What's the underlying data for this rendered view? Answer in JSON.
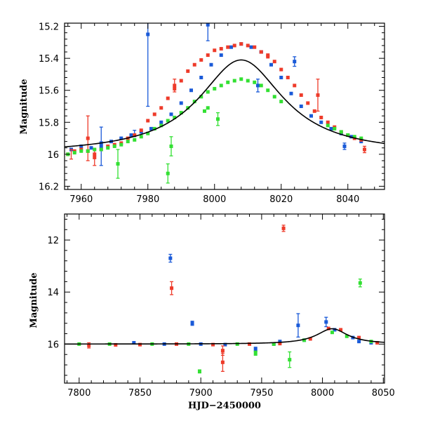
{
  "chart_data": [
    {
      "type": "scatter",
      "xlabel": "",
      "ylabel": "Magnitude",
      "xlim": [
        7955,
        8051
      ],
      "ylim": [
        15.18,
        16.22
      ],
      "y_inverted": true,
      "xticks": [
        7960,
        7980,
        8000,
        8020,
        8040
      ],
      "yticks": [
        15.2,
        15.4,
        15.6,
        15.8,
        16,
        16.2
      ],
      "yticklabels": [
        "15.2",
        "15.4",
        "15.6",
        "15.8",
        "16",
        "16.2"
      ],
      "grid": false,
      "model": {
        "color": "#000000",
        "peak_x": 8008,
        "peak_y": 15.41,
        "base": 16.0,
        "depth": 0.59,
        "width": 15.5
      },
      "series": [
        {
          "color": "#1a5ad8",
          "points": [
            [
              7957,
              15.97
            ],
            [
              7960,
              15.95
            ],
            [
              7963,
              15.96
            ],
            [
              7966,
              15.93
            ],
            [
              7969,
              15.92
            ],
            [
              7972,
              15.9
            ],
            [
              7975,
              15.88
            ],
            [
              7978,
              15.86
            ],
            [
              7981,
              15.84
            ],
            [
              7984,
              15.8
            ],
            [
              7987,
              15.75
            ],
            [
              7990,
              15.68
            ],
            [
              7993,
              15.6
            ],
            [
              7996,
              15.52
            ],
            [
              7999,
              15.44
            ],
            [
              8002,
              15.38
            ],
            [
              8005,
              15.33
            ],
            [
              8008,
              15.31
            ],
            [
              8011,
              15.33
            ],
            [
              8014,
              15.36
            ],
            [
              8017,
              15.44
            ],
            [
              8020,
              15.52
            ],
            [
              8023,
              15.62
            ],
            [
              8026,
              15.7
            ],
            [
              8029,
              15.76
            ],
            [
              8032,
              15.8
            ],
            [
              8035,
              15.84
            ],
            [
              8038,
              15.87
            ],
            [
              8041,
              15.89
            ],
            [
              8044,
              15.92
            ],
            [
              7980,
              15.25
            ],
            [
              7966,
              15.95
            ],
            [
              7998,
              15.19
            ],
            [
              8024,
              15.42
            ],
            [
              8013,
              15.57
            ],
            [
              8039,
              15.95
            ],
            [
              8014,
              15.36
            ]
          ],
          "errors": [
            [
              7980,
              15.25,
              0.45
            ],
            [
              7966,
              15.95,
              0.12
            ],
            [
              7998,
              15.19,
              0.1
            ],
            [
              8024,
              15.42,
              0.03
            ],
            [
              8013,
              15.57,
              0.04
            ],
            [
              8039,
              15.95,
              0.02
            ],
            [
              7976,
              15.87,
              0.02
            ]
          ]
        },
        {
          "color": "#ee3b2a",
          "points": [
            [
              7956,
              16.0
            ],
            [
              7958,
              15.98
            ],
            [
              7960,
              15.97
            ],
            [
              7962,
              15.98
            ],
            [
              7964,
              16.0
            ],
            [
              7966,
              15.97
            ],
            [
              7968,
              15.95
            ],
            [
              7970,
              15.94
            ],
            [
              7972,
              15.93
            ],
            [
              7974,
              15.9
            ],
            [
              7976,
              15.88
            ],
            [
              7978,
              15.85
            ],
            [
              7980,
              15.79
            ],
            [
              7982,
              15.75
            ],
            [
              7984,
              15.71
            ],
            [
              7986,
              15.65
            ],
            [
              7988,
              15.59
            ],
            [
              7990,
              15.54
            ],
            [
              7992,
              15.48
            ],
            [
              7994,
              15.44
            ],
            [
              7996,
              15.41
            ],
            [
              7998,
              15.38
            ],
            [
              8000,
              15.35
            ],
            [
              8002,
              15.34
            ],
            [
              8004,
              15.33
            ],
            [
              8006,
              15.32
            ],
            [
              8008,
              15.31
            ],
            [
              8010,
              15.32
            ],
            [
              8012,
              15.33
            ],
            [
              8014,
              15.36
            ],
            [
              8016,
              15.39
            ],
            [
              8018,
              15.42
            ],
            [
              8020,
              15.47
            ],
            [
              8022,
              15.52
            ],
            [
              8024,
              15.57
            ],
            [
              8026,
              15.63
            ],
            [
              8028,
              15.68
            ],
            [
              8030,
              15.73
            ],
            [
              8032,
              15.77
            ],
            [
              8034,
              15.8
            ],
            [
              8036,
              15.83
            ],
            [
              8038,
              15.86
            ],
            [
              8040,
              15.88
            ],
            [
              8042,
              15.9
            ],
            [
              8044,
              15.91
            ],
            [
              8045,
              15.97
            ],
            [
              7962,
              15.9
            ],
            [
              7964,
              16.02
            ],
            [
              7988,
              15.57
            ],
            [
              8031,
              15.63
            ],
            [
              8016,
              15.38
            ]
          ],
          "errors": [
            [
              7962,
              15.9,
              0.14
            ],
            [
              7964,
              16.02,
              0.05
            ],
            [
              7988,
              15.57,
              0.04
            ],
            [
              8031,
              15.63,
              0.1
            ],
            [
              8045,
              15.97,
              0.02
            ],
            [
              7957,
              16.0,
              0.03
            ]
          ]
        },
        {
          "color": "#33e033",
          "points": [
            [
              7956,
              16.0
            ],
            [
              7958,
              15.99
            ],
            [
              7960,
              15.98
            ],
            [
              7962,
              15.98
            ],
            [
              7964,
              15.97
            ],
            [
              7966,
              15.97
            ],
            [
              7968,
              15.96
            ],
            [
              7970,
              15.95
            ],
            [
              7972,
              15.94
            ],
            [
              7974,
              15.92
            ],
            [
              7976,
              15.91
            ],
            [
              7978,
              15.89
            ],
            [
              7980,
              15.87
            ],
            [
              7982,
              15.84
            ],
            [
              7984,
              15.82
            ],
            [
              7986,
              15.79
            ],
            [
              7988,
              15.77
            ],
            [
              7990,
              15.74
            ],
            [
              7992,
              15.71
            ],
            [
              7994,
              15.67
            ],
            [
              7996,
              15.64
            ],
            [
              7998,
              15.61
            ],
            [
              8000,
              15.59
            ],
            [
              8002,
              15.57
            ],
            [
              8004,
              15.55
            ],
            [
              8006,
              15.54
            ],
            [
              8008,
              15.53
            ],
            [
              8010,
              15.54
            ],
            [
              8012,
              15.55
            ],
            [
              8014,
              15.57
            ],
            [
              8016,
              15.6
            ],
            [
              8018,
              15.64
            ],
            [
              8020,
              15.67
            ],
            [
              8034,
              15.82
            ],
            [
              8036,
              15.84
            ],
            [
              8038,
              15.86
            ],
            [
              8040,
              15.88
            ],
            [
              8042,
              15.89
            ],
            [
              8044,
              15.9
            ],
            [
              7971,
              16.06
            ],
            [
              7986,
              16.12
            ],
            [
              7987,
              15.95
            ],
            [
              7998,
              15.71
            ],
            [
              8001,
              15.78
            ],
            [
              7997,
              15.73
            ]
          ],
          "errors": [
            [
              7971,
              16.06,
              0.09
            ],
            [
              7986,
              16.12,
              0.06
            ],
            [
              7987,
              15.95,
              0.06
            ],
            [
              8001,
              15.78,
              0.04
            ]
          ]
        }
      ]
    },
    {
      "type": "scatter",
      "xlabel": "HJD−2450000",
      "ylabel": "Magnitude",
      "xlim": [
        7788,
        8051
      ],
      "ylim": [
        11.0,
        17.5
      ],
      "y_inverted": true,
      "xticks": [
        7800,
        7850,
        7900,
        7950,
        8000,
        8050
      ],
      "yticks": [
        12,
        14,
        16
      ],
      "yticklabels": [
        "12",
        "14",
        "16"
      ],
      "grid": false,
      "model": {
        "color": "#000000",
        "peak_x": 8008,
        "peak_y": 15.41,
        "base": 16.0,
        "depth": 0.59,
        "width": 15.5
      },
      "series": [
        {
          "color": "#1a5ad8",
          "points": [
            [
              7875,
              12.7
            ],
            [
              7893,
              15.2
            ],
            [
              7945,
              16.2
            ],
            [
              7980,
              15.28
            ],
            [
              8003,
              15.15
            ],
            [
              8030,
              15.9
            ],
            [
              7845,
              15.95
            ],
            [
              7870,
              16.0
            ],
            [
              7920,
              16.02
            ],
            [
              7965,
              15.9
            ],
            [
              7985,
              15.85
            ],
            [
              8010,
              15.45
            ],
            [
              8025,
              15.75
            ],
            [
              8040,
              15.95
            ],
            [
              7900,
              16.0
            ],
            [
              7960,
              16.0
            ]
          ],
          "errors": [
            [
              7875,
              12.7,
              0.15
            ],
            [
              7893,
              15.2,
              0.08
            ],
            [
              7980,
              15.28,
              0.45
            ],
            [
              8003,
              15.15,
              0.18
            ],
            [
              7945,
              16.2,
              0.08
            ]
          ]
        },
        {
          "color": "#ee3b2a",
          "points": [
            [
              7968,
              11.55
            ],
            [
              7876,
              13.85
            ],
            [
              7918,
              16.7
            ],
            [
              7918,
              16.25
            ],
            [
              7808,
              16.05
            ],
            [
              7830,
              16.03
            ],
            [
              7850,
              16.02
            ],
            [
              7880,
              16.0
            ],
            [
              7910,
              16.02
            ],
            [
              7940,
              16.0
            ],
            [
              7965,
              15.98
            ],
            [
              7990,
              15.8
            ],
            [
              8005,
              15.4
            ],
            [
              8015,
              15.45
            ],
            [
              8030,
              15.75
            ],
            [
              8045,
              15.95
            ]
          ],
          "errors": [
            [
              7968,
              11.55,
              0.12
            ],
            [
              7876,
              13.85,
              0.25
            ],
            [
              7918,
              16.7,
              0.35
            ],
            [
              7918,
              16.25,
              0.18
            ],
            [
              7808,
              16.05,
              0.1
            ]
          ]
        },
        {
          "color": "#33e033",
          "points": [
            [
              8031,
              13.65
            ],
            [
              7899,
              17.05
            ],
            [
              7973,
              16.6
            ],
            [
              7945,
              16.35
            ],
            [
              7800,
              16.0
            ],
            [
              7825,
              16.0
            ],
            [
              7860,
              16.0
            ],
            [
              7890,
              16.0
            ],
            [
              7930,
              16.0
            ],
            [
              7960,
              16.0
            ],
            [
              7985,
              15.85
            ],
            [
              8008,
              15.55
            ],
            [
              8020,
              15.7
            ],
            [
              8040,
              15.9
            ]
          ],
          "errors": [
            [
              8031,
              13.65,
              0.15
            ],
            [
              7899,
              17.05,
              0.06
            ],
            [
              7973,
              16.6,
              0.3
            ],
            [
              7945,
              16.35,
              0.08
            ]
          ]
        }
      ]
    }
  ]
}
